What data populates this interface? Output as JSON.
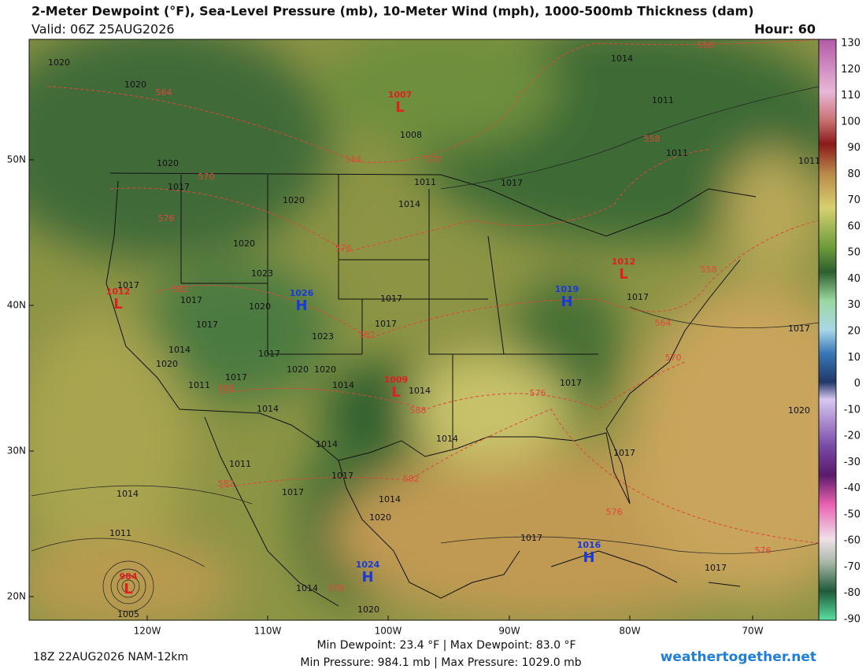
{
  "header": {
    "title": "2-Meter Dewpoint (°F), Sea-Level Pressure (mb), 10-Meter Wind (mph), 1000-500mb Thickness (dam)",
    "valid": "Valid: 06Z 25AUG2026",
    "hour": "Hour: 60"
  },
  "colorbar": {
    "labels": [
      "130",
      "120",
      "110",
      "100",
      "90",
      "80",
      "70",
      "60",
      "50",
      "40",
      "30",
      "20",
      "10",
      "0",
      "-10",
      "-20",
      "-30",
      "-40",
      "-50",
      "-60",
      "-70",
      "-80",
      "-90"
    ]
  },
  "axes": {
    "lat_labels": [
      "50N",
      "40N",
      "30N",
      "20N"
    ],
    "lon_labels": [
      "120W",
      "110W",
      "100W",
      "90W",
      "80W",
      "70W"
    ]
  },
  "pressure_centers": [
    {
      "type": "L",
      "value": "1007"
    },
    {
      "type": "L",
      "value": "1012"
    },
    {
      "type": "L",
      "value": "1009"
    },
    {
      "type": "L",
      "value": "1012"
    },
    {
      "type": "L",
      "value": "984"
    },
    {
      "type": "H",
      "value": "1026"
    },
    {
      "type": "H",
      "value": "1019"
    },
    {
      "type": "H",
      "value": "1024"
    },
    {
      "type": "H",
      "value": "1016"
    }
  ],
  "isobar_labels": [
    "1020",
    "1020",
    "1014",
    "1011",
    "1011",
    "1011",
    "1020",
    "1017",
    "1020",
    "1011",
    "1014",
    "1017",
    "1020",
    "1023",
    "1017",
    "1017",
    "1020",
    "1017",
    "1017",
    "1017",
    "1023",
    "1014",
    "1020",
    "1017",
    "1020",
    "1020",
    "1014",
    "1011",
    "1017",
    "1014",
    "1014",
    "1014",
    "1014",
    "1017",
    "1017",
    "1017",
    "1020",
    "1017",
    "1011",
    "1017",
    "1017",
    "1014",
    "1020",
    "1014",
    "1011",
    "1017",
    "1017",
    "1014",
    "1020",
    "1005",
    "1008"
  ],
  "thickness_labels": [
    "558",
    "564",
    "558",
    "564",
    "570",
    "570",
    "576",
    "576",
    "582",
    "558",
    "564",
    "582",
    "570",
    "576",
    "588",
    "588",
    "582",
    "582",
    "576",
    "576",
    "576"
  ],
  "footer": {
    "run": "18Z 22AUG2026 NAM-12km",
    "dewpoint": "Min Dewpoint:  23.4 °F | Max Dewpoint:  83.0 °F",
    "pressure": "Min Pressure: 984.1 mb | Max Pressure: 1029.0 mb",
    "site": "weathertogether.net"
  }
}
